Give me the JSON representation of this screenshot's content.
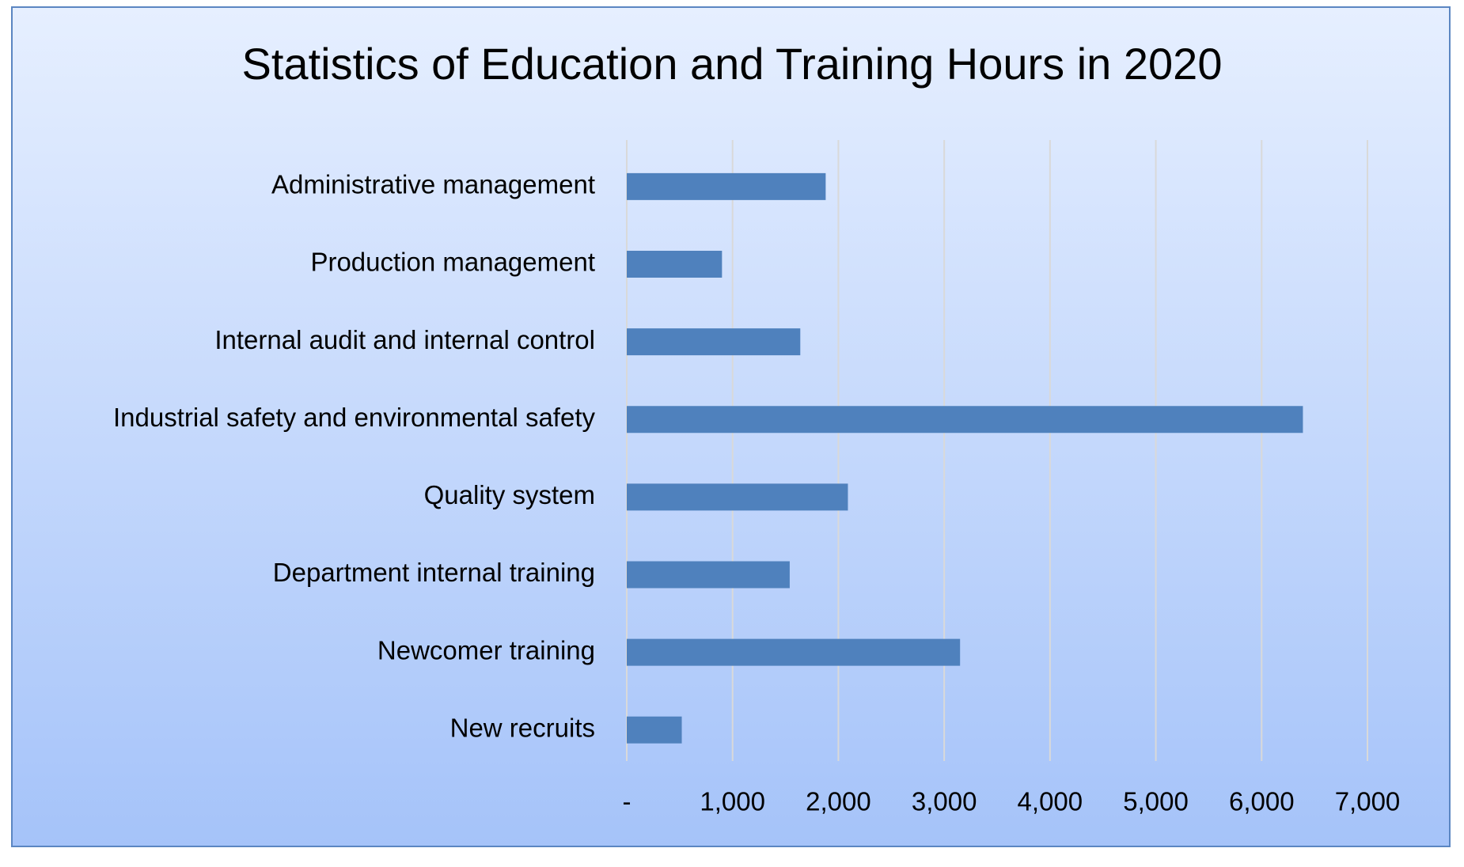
{
  "chart_data": {
    "type": "bar",
    "orientation": "horizontal",
    "title": "Statistics of Education and Training Hours in 2020",
    "categories": [
      "Administrative management",
      "Production management",
      "Internal audit and internal control",
      "Industrial safety and environmental safety",
      "Quality system",
      "Department internal training",
      "Newcomer training",
      "New recruits"
    ],
    "values": [
      1880,
      900,
      1640,
      6390,
      2090,
      1540,
      3150,
      520
    ],
    "color": "#4f81bd",
    "xlim": [
      0,
      7000
    ],
    "xticks": [
      {
        "value": 0,
        "label": "-"
      },
      {
        "value": 1000,
        "label": "1,000"
      },
      {
        "value": 2000,
        "label": "2,000"
      },
      {
        "value": 3000,
        "label": "3,000"
      },
      {
        "value": 4000,
        "label": "4,000"
      },
      {
        "value": 5000,
        "label": "5,000"
      },
      {
        "value": 6000,
        "label": "6,000"
      },
      {
        "value": 7000,
        "label": "7,000"
      }
    ],
    "grid": true
  }
}
